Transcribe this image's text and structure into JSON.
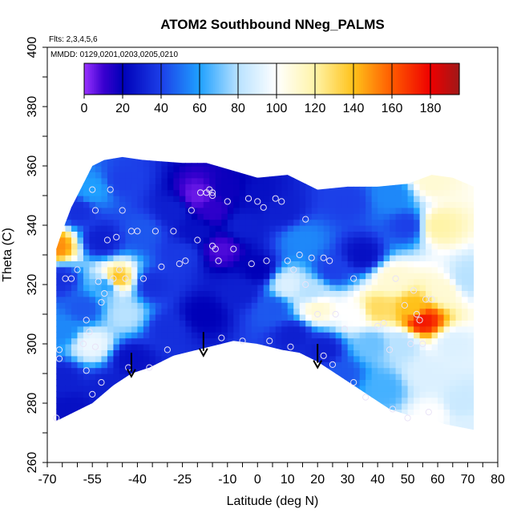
{
  "chart_data": {
    "type": "heatmap",
    "title": "ATOM2 Southbound NNeg_PALMS",
    "annotations": [
      "Flts: 2,3,4,5,6",
      "MMDD: 0129,0201,0203,0205,0210"
    ],
    "xlabel": "Latitude (deg N)",
    "ylabel": "Theta (C)",
    "xlim": [
      -70,
      80
    ],
    "ylim": [
      260,
      400
    ],
    "x_ticks": [
      -70,
      -55,
      -40,
      -25,
      -10,
      0,
      10,
      20,
      30,
      40,
      50,
      60,
      70,
      80
    ],
    "y_ticks": [
      260,
      280,
      300,
      320,
      340,
      360,
      380,
      400
    ],
    "colorbar": {
      "range": [
        0,
        195
      ],
      "ticks": [
        0,
        20,
        40,
        60,
        80,
        100,
        120,
        140,
        160,
        180
      ],
      "stops": [
        {
          "value": 0,
          "color": "#9a33ff"
        },
        {
          "value": 10,
          "color": "#3a00d0"
        },
        {
          "value": 20,
          "color": "#0000b8"
        },
        {
          "value": 40,
          "color": "#1c3fe8"
        },
        {
          "value": 60,
          "color": "#1fa0ff"
        },
        {
          "value": 80,
          "color": "#b8e2ff"
        },
        {
          "value": 100,
          "color": "#ffffff"
        },
        {
          "value": 120,
          "color": "#fff4a8"
        },
        {
          "value": 140,
          "color": "#ffc21a"
        },
        {
          "value": 160,
          "color": "#ff5a00"
        },
        {
          "value": 180,
          "color": "#ee0000"
        },
        {
          "value": 195,
          "color": "#a01818"
        }
      ]
    },
    "field_points": [
      {
        "x": -67,
        "y": 333,
        "v": 150
      },
      {
        "x": -66,
        "y": 322,
        "v": 35
      },
      {
        "x": -65,
        "y": 305,
        "v": 55
      },
      {
        "x": -65,
        "y": 288,
        "v": 30
      },
      {
        "x": -60,
        "y": 345,
        "v": 35
      },
      {
        "x": -58,
        "y": 312,
        "v": 45
      },
      {
        "x": -55,
        "y": 352,
        "v": 60
      },
      {
        "x": -55,
        "y": 300,
        "v": 95
      },
      {
        "x": -52,
        "y": 335,
        "v": 30
      },
      {
        "x": -50,
        "y": 320,
        "v": 60
      },
      {
        "x": -47,
        "y": 322,
        "v": 140
      },
      {
        "x": -45,
        "y": 355,
        "v": 40
      },
      {
        "x": -44,
        "y": 310,
        "v": 80
      },
      {
        "x": -42,
        "y": 295,
        "v": 25
      },
      {
        "x": -38,
        "y": 338,
        "v": 45
      },
      {
        "x": -35,
        "y": 320,
        "v": 35
      },
      {
        "x": -30,
        "y": 305,
        "v": 35
      },
      {
        "x": -28,
        "y": 345,
        "v": 30
      },
      {
        "x": -25,
        "y": 330,
        "v": 38
      },
      {
        "x": -20,
        "y": 350,
        "v": 5
      },
      {
        "x": -20,
        "y": 338,
        "v": 25
      },
      {
        "x": -18,
        "y": 310,
        "v": 20
      },
      {
        "x": -15,
        "y": 345,
        "v": 12
      },
      {
        "x": -12,
        "y": 332,
        "v": 8
      },
      {
        "x": -10,
        "y": 352,
        "v": 18
      },
      {
        "x": -5,
        "y": 318,
        "v": 30
      },
      {
        "x": -5,
        "y": 340,
        "v": 30
      },
      {
        "x": 0,
        "y": 350,
        "v": 25
      },
      {
        "x": 0,
        "y": 325,
        "v": 20
      },
      {
        "x": 5,
        "y": 312,
        "v": 45
      },
      {
        "x": 8,
        "y": 345,
        "v": 30
      },
      {
        "x": 10,
        "y": 320,
        "v": 90
      },
      {
        "x": 12,
        "y": 303,
        "v": 30
      },
      {
        "x": 15,
        "y": 335,
        "v": 55
      },
      {
        "x": 18,
        "y": 318,
        "v": 80
      },
      {
        "x": 20,
        "y": 312,
        "v": 110
      },
      {
        "x": 22,
        "y": 298,
        "v": 30
      },
      {
        "x": 25,
        "y": 325,
        "v": 40
      },
      {
        "x": 28,
        "y": 290,
        "v": 45
      },
      {
        "x": 32,
        "y": 310,
        "v": 100
      },
      {
        "x": 35,
        "y": 330,
        "v": 25
      },
      {
        "x": 38,
        "y": 300,
        "v": 70
      },
      {
        "x": 40,
        "y": 312,
        "v": 130
      },
      {
        "x": 42,
        "y": 285,
        "v": 65
      },
      {
        "x": 45,
        "y": 322,
        "v": 110
      },
      {
        "x": 48,
        "y": 300,
        "v": 80
      },
      {
        "x": 50,
        "y": 340,
        "v": 40
      },
      {
        "x": 52,
        "y": 312,
        "v": 140
      },
      {
        "x": 55,
        "y": 308,
        "v": 175
      },
      {
        "x": 56,
        "y": 290,
        "v": 90
      },
      {
        "x": 58,
        "y": 355,
        "v": 110
      },
      {
        "x": 60,
        "y": 340,
        "v": 120
      },
      {
        "x": 62,
        "y": 318,
        "v": 110
      },
      {
        "x": 65,
        "y": 300,
        "v": 90
      },
      {
        "x": 68,
        "y": 280,
        "v": 85
      },
      {
        "x": 70,
        "y": 322,
        "v": 80
      },
      {
        "x": 70,
        "y": 272,
        "v": 90
      },
      {
        "x": 58,
        "y": 276,
        "v": 100
      },
      {
        "x": 45,
        "y": 350,
        "v": 55
      },
      {
        "x": 30,
        "y": 348,
        "v": 40
      },
      {
        "x": -62,
        "y": 278,
        "v": 25
      },
      {
        "x": -50,
        "y": 285,
        "v": 30
      }
    ],
    "samples": [
      {
        "x": -67,
        "y": 275
      },
      {
        "x": -66,
        "y": 295
      },
      {
        "x": -66,
        "y": 298
      },
      {
        "x": -64,
        "y": 322
      },
      {
        "x": -62,
        "y": 322
      },
      {
        "x": -60,
        "y": 325
      },
      {
        "x": -58,
        "y": 300
      },
      {
        "x": -57,
        "y": 308
      },
      {
        "x": -57,
        "y": 291
      },
      {
        "x": -56,
        "y": 304
      },
      {
        "x": -55,
        "y": 352
      },
      {
        "x": -55,
        "y": 283
      },
      {
        "x": -54,
        "y": 345
      },
      {
        "x": -54,
        "y": 299
      },
      {
        "x": -53,
        "y": 321
      },
      {
        "x": -52,
        "y": 314
      },
      {
        "x": -52,
        "y": 287
      },
      {
        "x": -51,
        "y": 317
      },
      {
        "x": -50,
        "y": 335
      },
      {
        "x": -49,
        "y": 352
      },
      {
        "x": -48,
        "y": 322
      },
      {
        "x": -47,
        "y": 336
      },
      {
        "x": -46,
        "y": 325
      },
      {
        "x": -45,
        "y": 345
      },
      {
        "x": -44,
        "y": 322
      },
      {
        "x": -43,
        "y": 292
      },
      {
        "x": -42,
        "y": 338
      },
      {
        "x": -40,
        "y": 338
      },
      {
        "x": -38,
        "y": 322
      },
      {
        "x": -36,
        "y": 292
      },
      {
        "x": -34,
        "y": 338
      },
      {
        "x": -32,
        "y": 326
      },
      {
        "x": -30,
        "y": 298
      },
      {
        "x": -28,
        "y": 338
      },
      {
        "x": -26,
        "y": 327
      },
      {
        "x": -24,
        "y": 328
      },
      {
        "x": -22,
        "y": 345
      },
      {
        "x": -20,
        "y": 335
      },
      {
        "x": -19,
        "y": 351
      },
      {
        "x": -17,
        "y": 351
      },
      {
        "x": -16,
        "y": 352
      },
      {
        "x": -15,
        "y": 351
      },
      {
        "x": -15,
        "y": 350
      },
      {
        "x": -15,
        "y": 333
      },
      {
        "x": -14,
        "y": 332
      },
      {
        "x": -13,
        "y": 328
      },
      {
        "x": -12,
        "y": 302
      },
      {
        "x": -10,
        "y": 348
      },
      {
        "x": -8,
        "y": 332
      },
      {
        "x": -5,
        "y": 301
      },
      {
        "x": -3,
        "y": 349
      },
      {
        "x": -2,
        "y": 327
      },
      {
        "x": 0,
        "y": 348
      },
      {
        "x": 2,
        "y": 346
      },
      {
        "x": 3,
        "y": 328
      },
      {
        "x": 4,
        "y": 301
      },
      {
        "x": 6,
        "y": 349
      },
      {
        "x": 8,
        "y": 348
      },
      {
        "x": 10,
        "y": 328
      },
      {
        "x": 11,
        "y": 299
      },
      {
        "x": 12,
        "y": 325
      },
      {
        "x": 14,
        "y": 330
      },
      {
        "x": 16,
        "y": 342
      },
      {
        "x": 16,
        "y": 320
      },
      {
        "x": 18,
        "y": 329
      },
      {
        "x": 20,
        "y": 310
      },
      {
        "x": 22,
        "y": 329
      },
      {
        "x": 22,
        "y": 296
      },
      {
        "x": 24,
        "y": 328
      },
      {
        "x": 25,
        "y": 293
      },
      {
        "x": 26,
        "y": 310
      },
      {
        "x": 29,
        "y": 305
      },
      {
        "x": 32,
        "y": 322
      },
      {
        "x": 32,
        "y": 287
      },
      {
        "x": 36,
        "y": 282
      },
      {
        "x": 40,
        "y": 306
      },
      {
        "x": 42,
        "y": 307
      },
      {
        "x": 44,
        "y": 298
      },
      {
        "x": 45,
        "y": 278
      },
      {
        "x": 46,
        "y": 322
      },
      {
        "x": 49,
        "y": 313
      },
      {
        "x": 50,
        "y": 275
      },
      {
        "x": 51,
        "y": 300
      },
      {
        "x": 52,
        "y": 318
      },
      {
        "x": 53,
        "y": 310
      },
      {
        "x": 54,
        "y": 308
      },
      {
        "x": 55,
        "y": 300
      },
      {
        "x": 56,
        "y": 315
      },
      {
        "x": 57,
        "y": 277
      },
      {
        "x": 58,
        "y": 315
      }
    ],
    "arrows": [
      {
        "x": -42,
        "y_top": 297,
        "y_tip": 289
      },
      {
        "x": -18,
        "y_top": 304,
        "y_tip": 296
      },
      {
        "x": 20,
        "y_top": 300,
        "y_tip": 292
      }
    ],
    "bottom_boundary": [
      [
        -67,
        274
      ],
      [
        -55,
        280
      ],
      [
        -48,
        286
      ],
      [
        -42,
        290
      ],
      [
        -36,
        292
      ],
      [
        -28,
        296
      ],
      [
        -20,
        298
      ],
      [
        -12,
        300
      ],
      [
        -8,
        301
      ],
      [
        0,
        300
      ],
      [
        8,
        298
      ],
      [
        14,
        297
      ],
      [
        20,
        294
      ],
      [
        26,
        290
      ],
      [
        32,
        286
      ],
      [
        38,
        282
      ],
      [
        44,
        278
      ],
      [
        50,
        276
      ],
      [
        56,
        276
      ],
      [
        62,
        273
      ],
      [
        72,
        271
      ]
    ],
    "top_boundary": [
      [
        -67,
        332
      ],
      [
        -65,
        338
      ],
      [
        -62,
        346
      ],
      [
        -58,
        354
      ],
      [
        -55,
        360
      ],
      [
        -51,
        362
      ],
      [
        -45,
        363
      ],
      [
        -38,
        362
      ],
      [
        -25,
        361
      ],
      [
        -17,
        361
      ],
      [
        0,
        356
      ],
      [
        10,
        357
      ],
      [
        20,
        352
      ],
      [
        30,
        353
      ],
      [
        40,
        353
      ],
      [
        50,
        354
      ],
      [
        58,
        357
      ],
      [
        65,
        356
      ],
      [
        72,
        353
      ]
    ]
  }
}
